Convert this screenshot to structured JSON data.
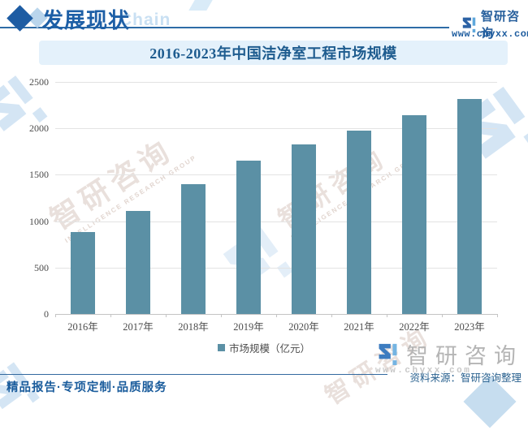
{
  "header": {
    "section_label": "发展现状",
    "section_watermark": "Chain",
    "brand": {
      "name": "智研咨询",
      "url": "www.chyxx.com"
    }
  },
  "chart_data": {
    "type": "bar",
    "title": "2016-2023年中国洁净室工程市场规模",
    "categories": [
      "2016年",
      "2017年",
      "2018年",
      "2019年",
      "2020年",
      "2021年",
      "2022年",
      "2023年"
    ],
    "values": [
      880,
      1113,
      1395,
      1655,
      1825,
      1980,
      2140,
      2315
    ],
    "series_name": "市场规模（亿元）",
    "xlabel": "",
    "ylabel": "",
    "ylim": [
      0,
      2500
    ],
    "yticks": [
      0,
      500,
      1000,
      1500,
      2000,
      2500
    ],
    "grid": true,
    "legend_position": "bottom",
    "bar_color": "#5b90a5"
  },
  "watermarks": {
    "brand_text": "智研咨询",
    "brand_subtext": "INTELLIGENCE RESEARCH GROUP"
  },
  "footer": {
    "slogan": "精品报告·专项定制·品质服务",
    "source": "资料来源：智研咨询整理",
    "brand_name": "智研咨询",
    "brand_url": "www.chyxx.com"
  },
  "colors": {
    "bar": "#5b90a5",
    "accent_blue": "#1d5c9e",
    "banner_bg": "#e4f1fb",
    "watermark_blue": "#cde1f3",
    "gridline": "#e3e3e3"
  }
}
